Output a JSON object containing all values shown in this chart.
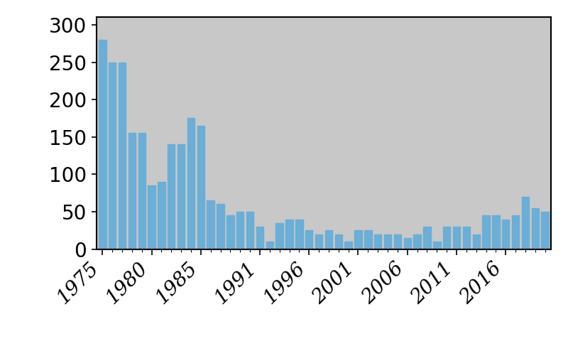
{
  "start_year": 1975,
  "values": [
    280,
    250,
    250,
    155,
    155,
    85,
    90,
    140,
    140,
    175,
    165,
    65,
    60,
    45,
    50,
    50,
    30,
    10,
    35,
    40,
    40,
    25,
    20,
    25,
    20,
    10,
    25,
    25,
    20,
    20,
    20,
    15,
    20,
    30,
    10,
    30,
    30,
    30,
    20,
    45,
    45,
    40,
    45,
    70,
    55,
    50
  ],
  "bar_color": "#6baed6",
  "background_color": "#c8c8c8",
  "outer_background": "#ffffff",
  "ylim": [
    0,
    310
  ],
  "yticks": [
    0,
    50,
    100,
    150,
    200,
    250,
    300
  ],
  "ytick_fontsize": 20,
  "xtick_fontsize": 20,
  "x_tick_labels": [
    "1975",
    "1980",
    "1985",
    "1991",
    "1996",
    "2001",
    "2006",
    "2011",
    "2016"
  ],
  "x_tick_positions": [
    1975,
    1980,
    1985,
    1991,
    1996,
    2001,
    2006,
    2011,
    2016
  ]
}
